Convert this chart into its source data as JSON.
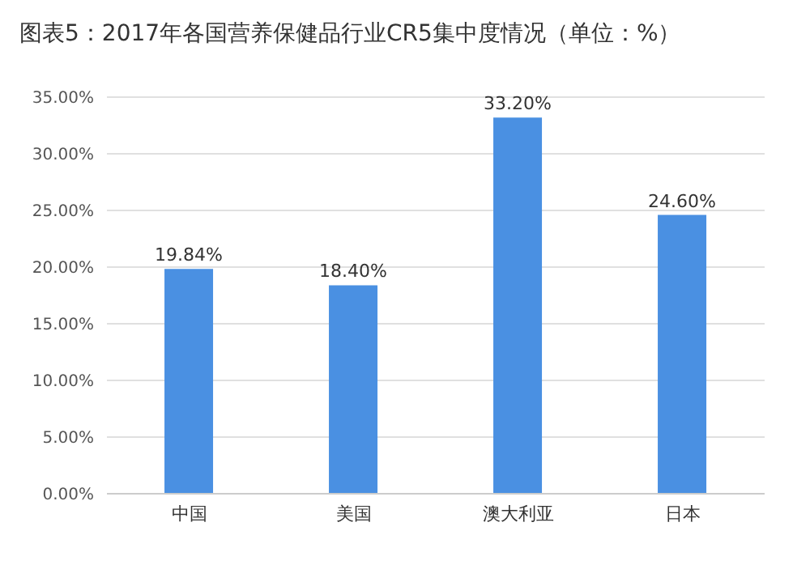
{
  "chart_data": {
    "type": "bar",
    "title": "图表5：2017年各国营养保健品行业CR5集中度情况（单位：%）",
    "categories": [
      "中国",
      "美国",
      "澳大利亚",
      "日本"
    ],
    "values": [
      19.84,
      18.4,
      33.2,
      24.6
    ],
    "value_labels": [
      "19.84%",
      "18.40%",
      "33.20%",
      "24.60%"
    ],
    "color": "#4a90e2",
    "ylim": [
      0,
      35
    ],
    "yticks": [
      {
        "value": 0,
        "label": "0.00%"
      },
      {
        "value": 5,
        "label": "5.00%"
      },
      {
        "value": 10,
        "label": "10.00%"
      },
      {
        "value": 15,
        "label": "15.00%"
      },
      {
        "value": 20,
        "label": "20.00%"
      },
      {
        "value": 25,
        "label": "25.00%"
      },
      {
        "value": 30,
        "label": "30.00%"
      },
      {
        "value": 35,
        "label": "35.00%"
      }
    ],
    "grid": "y"
  }
}
